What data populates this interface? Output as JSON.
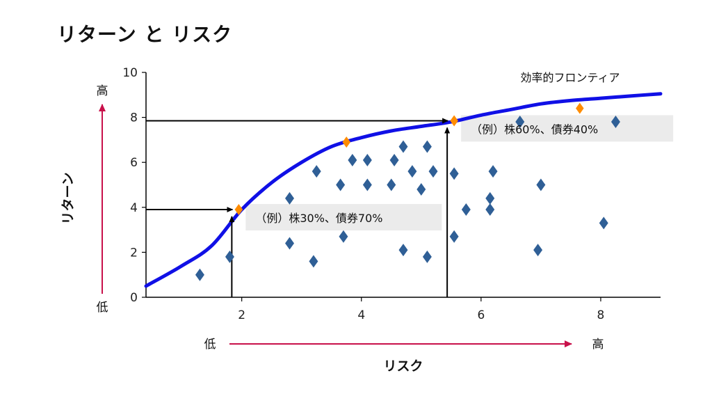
{
  "title": "リターン と リスク",
  "chart_data": {
    "type": "scatter",
    "title": "リターン と リスク",
    "xlabel": "リスク",
    "ylabel": "リターン",
    "xlim": [
      0.4,
      9.0
    ],
    "ylim": [
      0,
      10
    ],
    "xticks": [
      2,
      4,
      6,
      8
    ],
    "yticks": [
      0,
      2,
      4,
      6,
      8,
      10
    ],
    "grid": false,
    "x_low_label": "低",
    "x_high_label": "高",
    "y_low_label": "低",
    "y_high_label": "高",
    "frontier": {
      "name": "効率的フロンティア",
      "color": "#1010e6",
      "points": [
        [
          0.4,
          0.5
        ],
        [
          1.0,
          1.4
        ],
        [
          1.5,
          2.3
        ],
        [
          2.0,
          3.9
        ],
        [
          2.5,
          5.1
        ],
        [
          3.0,
          6.0
        ],
        [
          3.5,
          6.7
        ],
        [
          4.0,
          7.1
        ],
        [
          4.5,
          7.4
        ],
        [
          5.0,
          7.6
        ],
        [
          5.5,
          7.8
        ],
        [
          6.0,
          8.1
        ],
        [
          6.5,
          8.35
        ],
        [
          7.0,
          8.6
        ],
        [
          7.5,
          8.75
        ],
        [
          8.0,
          8.85
        ],
        [
          8.5,
          8.95
        ],
        [
          9.0,
          9.05
        ]
      ]
    },
    "portfolios": {
      "color": "#2f5f96",
      "points": [
        [
          1.3,
          1.0
        ],
        [
          1.8,
          1.8
        ],
        [
          2.8,
          4.4
        ],
        [
          2.8,
          2.4
        ],
        [
          3.25,
          5.6
        ],
        [
          3.2,
          1.6
        ],
        [
          3.65,
          5.0
        ],
        [
          3.7,
          2.7
        ],
        [
          3.85,
          6.1
        ],
        [
          4.1,
          6.1
        ],
        [
          4.1,
          5.0
        ],
        [
          4.5,
          5.0
        ],
        [
          4.55,
          6.1
        ],
        [
          4.7,
          6.7
        ],
        [
          4.7,
          2.1
        ],
        [
          4.85,
          5.6
        ],
        [
          5.0,
          4.8
        ],
        [
          5.1,
          6.7
        ],
        [
          5.1,
          1.8
        ],
        [
          5.2,
          5.6
        ],
        [
          5.55,
          2.7
        ],
        [
          5.55,
          5.5
        ],
        [
          5.75,
          3.9
        ],
        [
          6.15,
          3.9
        ],
        [
          6.15,
          4.4
        ],
        [
          6.2,
          5.6
        ],
        [
          6.65,
          7.8
        ],
        [
          6.95,
          2.1
        ],
        [
          7.0,
          5.0
        ],
        [
          8.05,
          3.3
        ],
        [
          8.25,
          7.8
        ]
      ]
    },
    "highlights": {
      "color": "#ff8c00",
      "points": [
        [
          1.95,
          3.9
        ],
        [
          3.75,
          6.9
        ],
        [
          5.55,
          7.85
        ],
        [
          7.65,
          8.4
        ]
      ]
    },
    "annotations": [
      {
        "text": "（例）株30%、債券70%",
        "x": 1.95,
        "y": 3.9
      },
      {
        "text": "（例）株60%、債券40%",
        "x": 5.55,
        "y": 7.85
      }
    ]
  }
}
